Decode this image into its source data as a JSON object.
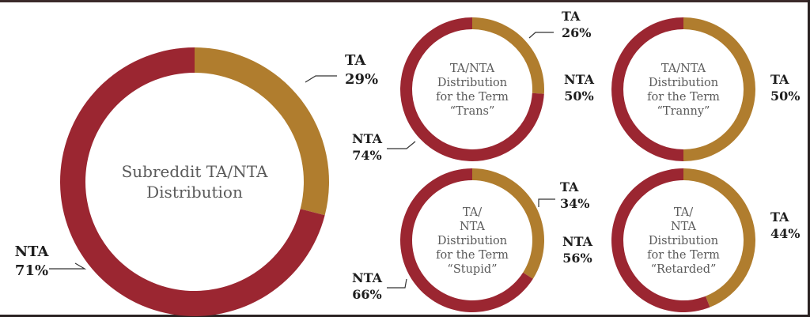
{
  "colors": {
    "ta": "#b07d2e",
    "nta": "#9b2631",
    "leader": "#333333",
    "center_text": "#5a5a5a",
    "label_text": "#1e1e1e"
  },
  "chart_data": [
    {
      "type": "pie",
      "title_lines": [
        "Subreddit TA/NTA",
        "Distribution"
      ],
      "slices": [
        {
          "name": "TA",
          "label_lines": [
            "TA",
            "29%"
          ],
          "value": 29
        },
        {
          "name": "NTA",
          "label_lines": [
            "NTA",
            "71%"
          ],
          "value": 71
        }
      ]
    },
    {
      "type": "pie",
      "title_lines": [
        "TA/NTA",
        "Distribution",
        "for the Term",
        "“Trans”"
      ],
      "slices": [
        {
          "name": "TA",
          "label_lines": [
            "TA",
            "26%"
          ],
          "value": 26
        },
        {
          "name": "NTA",
          "label_lines": [
            "NTA",
            "74%"
          ],
          "value": 74
        }
      ]
    },
    {
      "type": "pie",
      "title_lines": [
        "TA/NTA",
        "Distribution",
        "for the Term",
        "“Tranny”"
      ],
      "slices": [
        {
          "name": "TA",
          "label_lines": [
            "TA",
            "50%"
          ],
          "value": 50
        },
        {
          "name": "NTA",
          "label_lines": [
            "NTA",
            "50%"
          ],
          "value": 50
        }
      ]
    },
    {
      "type": "pie",
      "title_lines": [
        "TA/",
        "NTA",
        "Distribution",
        "for the Term",
        "“Stupid”"
      ],
      "slices": [
        {
          "name": "TA",
          "label_lines": [
            "TA",
            "34%"
          ],
          "value": 34
        },
        {
          "name": "NTA",
          "label_lines": [
            "NTA",
            "66%"
          ],
          "value": 66
        }
      ]
    },
    {
      "type": "pie",
      "title_lines": [
        "TA/",
        "NTA",
        "Distribution",
        "for the Term",
        "“Retarded”"
      ],
      "slices": [
        {
          "name": "TA",
          "label_lines": [
            "TA",
            "44%"
          ],
          "value": 44
        },
        {
          "name": "NTA",
          "label_lines": [
            "NTA",
            "56%"
          ],
          "value": 56
        }
      ]
    }
  ]
}
